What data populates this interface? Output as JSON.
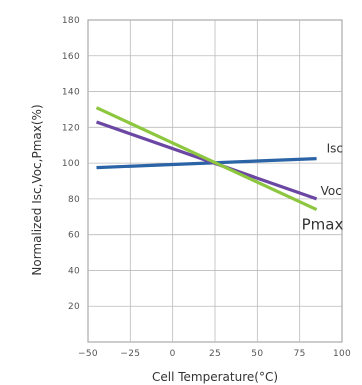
{
  "chart_data": {
    "type": "line",
    "title": "",
    "xlabel": "Cell Temperature(°C)",
    "ylabel": "Normalized Isc,Voc,Pmax(%)",
    "xlim": [
      -50,
      100
    ],
    "ylim": [
      0,
      180
    ],
    "x_ticks": [
      -50,
      -25,
      0,
      25,
      50,
      75,
      100
    ],
    "x_tick_labels": [
      "−50",
      "−25",
      "0",
      "25",
      "50",
      "75",
      "100"
    ],
    "y_ticks": [
      0,
      20,
      40,
      60,
      80,
      100,
      120,
      140,
      160,
      180
    ],
    "y_tick_labels": [
      "",
      "20",
      "40",
      "60",
      "80",
      "100",
      "120",
      "140",
      "160",
      "180"
    ],
    "grid": true,
    "series": [
      {
        "name": "Isc",
        "color": "#2a63a6",
        "x": [
          -45,
          85
        ],
        "y": [
          97.5,
          102.5
        ]
      },
      {
        "name": "Voc",
        "color": "#6b47a3",
        "x": [
          -45,
          85
        ],
        "y": [
          123,
          80
        ]
      },
      {
        "name": "Pmax",
        "color": "#8dc63f",
        "x": [
          -45,
          85
        ],
        "y": [
          131,
          74
        ]
      }
    ]
  }
}
